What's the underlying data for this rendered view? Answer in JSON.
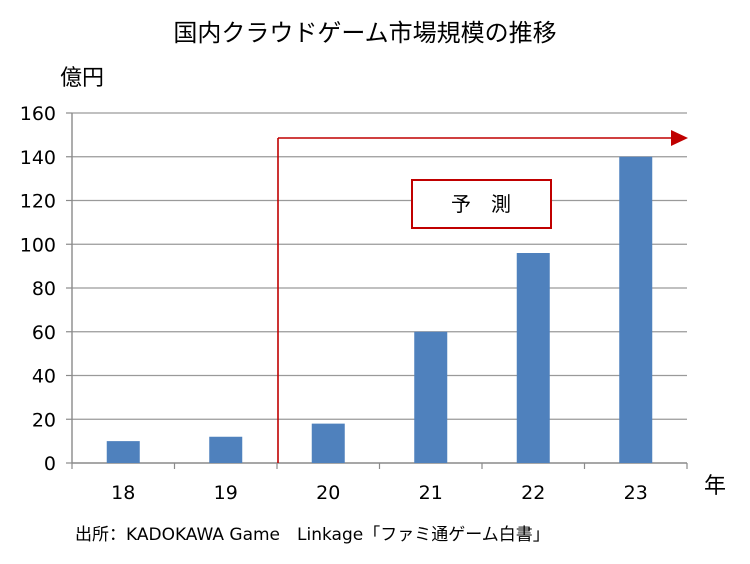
{
  "chart_data": {
    "type": "bar",
    "title": "国内クラウドゲーム市場規模の推移",
    "ylabel": "億円",
    "xlabel": "年",
    "categories": [
      "18",
      "19",
      "20",
      "21",
      "22",
      "23"
    ],
    "values": [
      10,
      12,
      18,
      60,
      96,
      140
    ],
    "ylim": [
      0,
      160
    ],
    "yticks": [
      0,
      20,
      40,
      60,
      80,
      100,
      120,
      140,
      160
    ],
    "grid": true,
    "bar_color": "#4f81bd",
    "forecast": {
      "label": "予　測",
      "from_category": "20",
      "color": "#c00000"
    },
    "source": "出所：KADOKAWA Game　Linkage「ファミ通ゲーム白書」"
  }
}
